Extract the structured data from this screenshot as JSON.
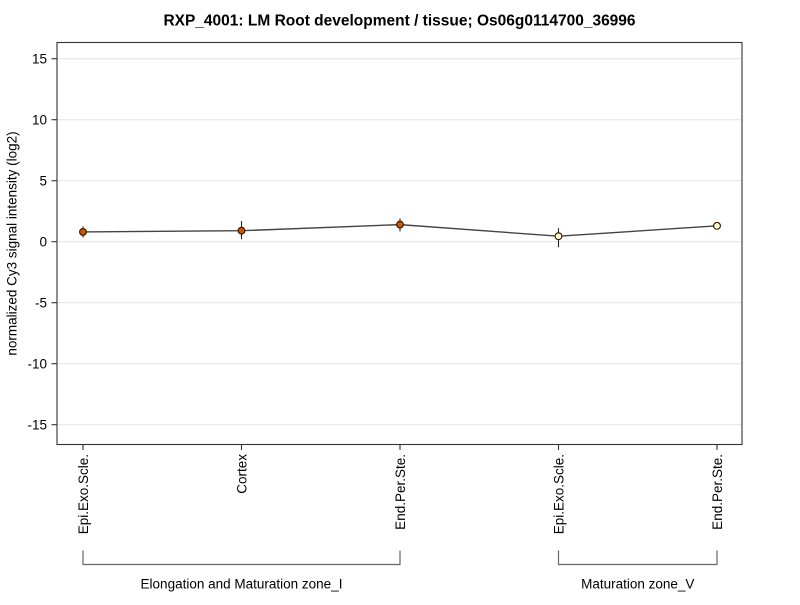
{
  "chart_data": {
    "type": "line",
    "title": "RXP_4001: LM Root development / tissue; Os06g0114700_36996",
    "ylabel": "normalized Cy3 signal intensity (log2)",
    "xlabel": "",
    "ylim": [
      -16.5,
      16.5
    ],
    "yticks": [
      15,
      10,
      5,
      0,
      -5,
      -10,
      -15
    ],
    "grid": "horizontal",
    "legend": "none",
    "groups": [
      {
        "label": "Elongation and Maturation zone_I",
        "marker": "filled-circle",
        "marker_fill": "#cc5500",
        "points": [
          {
            "category": "Epi.Exo.Scle.",
            "value": 0.8,
            "err_lo": 0.35,
            "err_hi": 1.25
          },
          {
            "category": "Cortex",
            "value": 0.9,
            "err_lo": 0.2,
            "err_hi": 1.7
          },
          {
            "category": "End.Per.Ste.",
            "value": 1.4,
            "err_lo": 0.85,
            "err_hi": 1.9
          }
        ]
      },
      {
        "label": "Maturation zone_V",
        "marker": "open-circle",
        "marker_fill": "#ffffcc",
        "points": [
          {
            "category": "Epi.Exo.Scle.",
            "value": 0.45,
            "err_lo": -0.45,
            "err_hi": 1.1
          },
          {
            "category": "End.Per.Ste.",
            "value": 1.3,
            "err_lo": 1.0,
            "err_hi": 1.6
          }
        ]
      }
    ],
    "colors": {
      "line": "#444444",
      "grid": "#e4e4e4",
      "axis": "#333333",
      "error": "#222222",
      "marker_stroke": "#2b1600",
      "bracket": "#666666"
    }
  }
}
